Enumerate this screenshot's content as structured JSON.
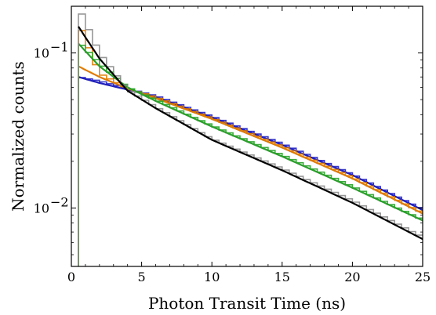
{
  "chart_data": {
    "type": "line",
    "xlabel": "Photon Transit Time (ns)",
    "ylabel": "Normalized counts",
    "xlim": [
      0,
      25
    ],
    "ylim": [
      0.0042,
      0.2
    ],
    "yscale": "log",
    "grid": false,
    "legend": "none",
    "x_ticks": [
      0,
      5,
      10,
      15,
      20,
      25
    ],
    "x_tick_labels": [
      "0",
      "5",
      "10",
      "15",
      "20",
      "25"
    ],
    "y_major_ticks": [
      0.01,
      0.1
    ],
    "y_tick_labels": [
      {
        "base": "10",
        "exp": "−2"
      },
      {
        "base": "10",
        "exp": "−1"
      }
    ],
    "series": [
      {
        "color": "#1f1fbf",
        "x": [
          0.5,
          2,
          4,
          6,
          10,
          15,
          20,
          25
        ],
        "histogram": [
          0.07,
          0.066,
          0.059,
          0.053,
          0.039,
          0.026,
          0.0165,
          0.0098
        ],
        "fit": [
          0.07,
          0.064,
          0.058,
          0.052,
          0.0385,
          0.0255,
          0.0163,
          0.0097
        ]
      },
      {
        "color": "#e07b00",
        "x": [
          0.5,
          2,
          4,
          6,
          10,
          15,
          20,
          25
        ],
        "histogram": [
          0.158,
          0.074,
          0.059,
          0.052,
          0.038,
          0.025,
          0.0158,
          0.0093
        ],
        "fit": [
          0.082,
          0.07,
          0.059,
          0.051,
          0.0375,
          0.0245,
          0.0155,
          0.0092
        ]
      },
      {
        "color": "#2aa02a",
        "x": [
          0.5,
          2,
          4,
          6,
          10,
          15,
          20,
          25
        ],
        "histogram": [
          0.118,
          0.086,
          0.06,
          0.05,
          0.034,
          0.022,
          0.0138,
          0.0084
        ],
        "fit": [
          0.115,
          0.082,
          0.06,
          0.049,
          0.0335,
          0.0215,
          0.0135,
          0.0083
        ]
      },
      {
        "color": "#8c8c8c",
        "x": [
          0.5,
          2,
          4,
          6,
          10,
          15,
          20,
          25
        ],
        "histogram": [
          0.2,
          0.1,
          0.058,
          0.045,
          0.028,
          0.018,
          0.0112,
          0.0065
        ],
        "fit": null
      },
      {
        "color": "#000000",
        "x": [
          0.5,
          2,
          4,
          6,
          10,
          15,
          20,
          25
        ],
        "histogram": null,
        "fit": [
          0.148,
          0.092,
          0.057,
          0.044,
          0.0275,
          0.0175,
          0.0108,
          0.0063
        ]
      }
    ]
  }
}
